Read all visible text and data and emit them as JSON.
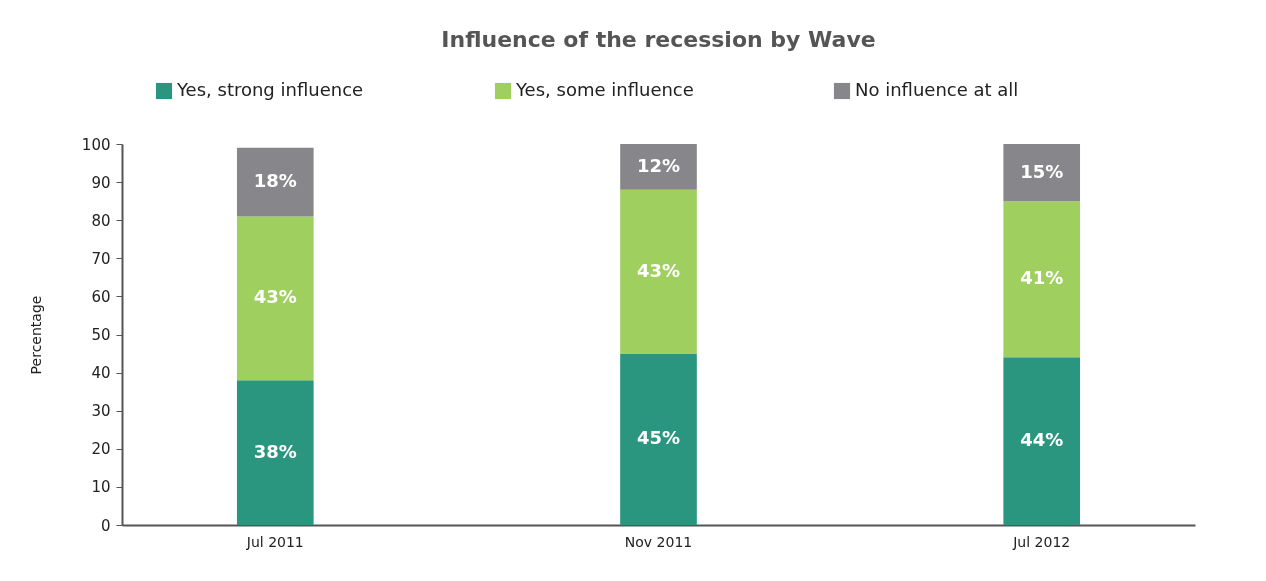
{
  "chart_data": {
    "type": "bar",
    "title": "Influence of the recession by Wave",
    "ylabel": "Percentage",
    "categories": [
      "Jul 2011",
      "Nov 2011",
      "Jul 2012"
    ],
    "stacked": true,
    "series": [
      {
        "name": "Yes, strong influence",
        "color": "#2a9680",
        "values": [
          38,
          45,
          44
        ],
        "value_labels": [
          "38%",
          "45%",
          "44%"
        ]
      },
      {
        "name": "Yes, some influence",
        "color": "#9fcf5f",
        "values": [
          43,
          43,
          41
        ],
        "value_labels": [
          "43%",
          "43%",
          "41%"
        ]
      },
      {
        "name": "No influence at all",
        "color": "#87878b",
        "values": [
          18,
          12,
          15
        ],
        "value_labels": [
          "18%",
          "12%",
          "15%"
        ]
      }
    ],
    "ylim": [
      0,
      100
    ],
    "yticks": [
      0,
      10,
      20,
      30,
      40,
      50,
      60,
      70,
      80,
      90,
      100
    ],
    "grid": false,
    "legend": "top"
  }
}
